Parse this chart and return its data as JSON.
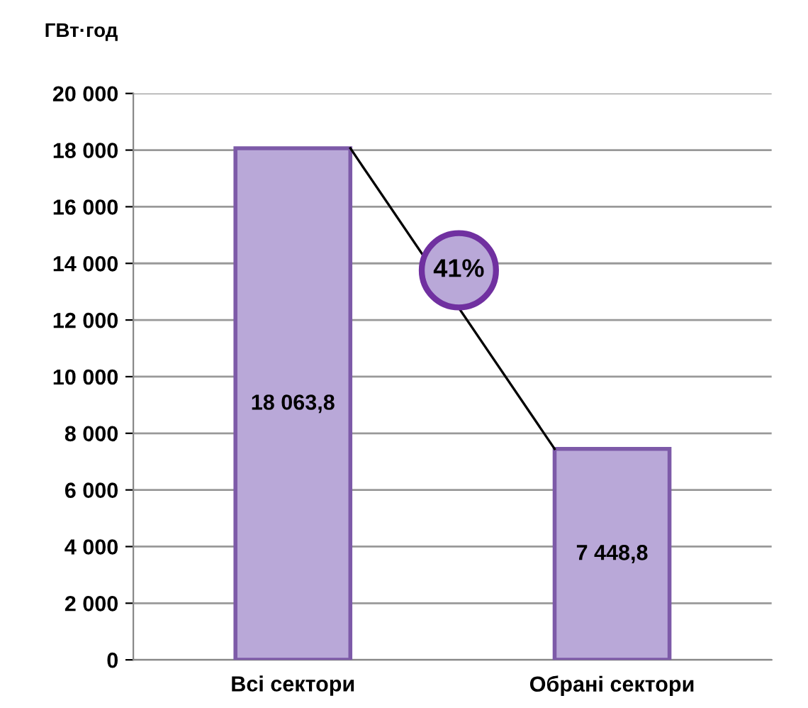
{
  "chart_data": {
    "type": "bar",
    "ylabel": "ГВт·год",
    "categories": [
      "Всі сектори",
      "Обрані сектори"
    ],
    "values": [
      18063.8,
      7448.8
    ],
    "value_labels": [
      "18 063,8",
      "7 448,8"
    ],
    "color": "#b9a8d8",
    "ylim": [
      0,
      20000
    ],
    "yticks": [
      {
        "value": 0,
        "label": "0"
      },
      {
        "value": 2000,
        "label": "2 000"
      },
      {
        "value": 4000,
        "label": "4 000"
      },
      {
        "value": 6000,
        "label": "6 000"
      },
      {
        "value": 8000,
        "label": "8 000"
      },
      {
        "value": 10000,
        "label": "10 000"
      },
      {
        "value": 12000,
        "label": "12 000"
      },
      {
        "value": 14000,
        "label": "14 000"
      },
      {
        "value": 16000,
        "label": "16 000"
      },
      {
        "value": 18000,
        "label": "18 000"
      },
      {
        "value": 20000,
        "label": "20 000"
      }
    ],
    "grid": "y",
    "annotations": [
      "41%"
    ]
  }
}
